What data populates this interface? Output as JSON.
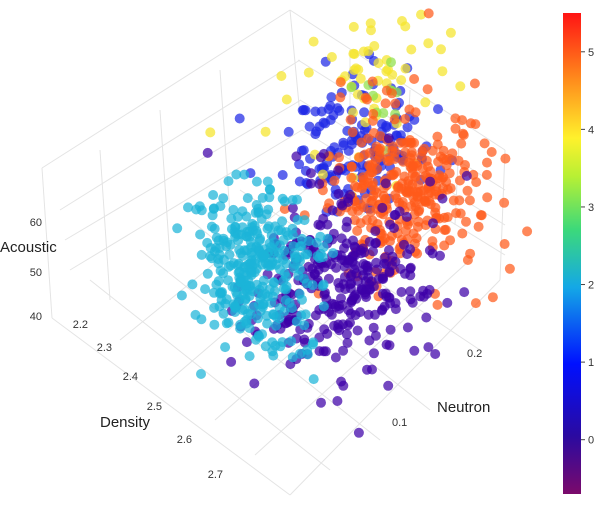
{
  "chart_data": {
    "type": "scatter3d",
    "axes": {
      "x": {
        "label": "Density",
        "ticks": [
          "2.2",
          "2.3",
          "2.4",
          "2.5",
          "2.6",
          "2.7"
        ],
        "range": [
          2.15,
          2.75
        ]
      },
      "y": {
        "label": "Neutron",
        "ticks": [
          "0.1",
          "0.2"
        ],
        "range": [
          0.0,
          0.28
        ]
      },
      "z": {
        "label": "Acoustic",
        "ticks": [
          "40",
          "50",
          "60"
        ],
        "range": [
          38,
          70
        ]
      }
    },
    "grid": true,
    "colorbar": {
      "ticks": [
        "0",
        "1",
        "2",
        "3",
        "4",
        "5"
      ],
      "range": [
        -0.7,
        5.5
      ],
      "colorscale": "jet-like",
      "placement": "right"
    },
    "clusters": [
      {
        "color_value": 0,
        "density_mean": 2.55,
        "neutron_mean": 0.13,
        "acoustic_mean": 49,
        "count": 320,
        "color": "#3d00a8"
      },
      {
        "color_value": 1,
        "density_mean": 2.37,
        "neutron_mean": 0.2,
        "acoustic_mean": 60,
        "count": 150,
        "color": "#1e28e6"
      },
      {
        "color_value": 2,
        "density_mean": 2.45,
        "neutron_mean": 0.06,
        "acoustic_mean": 50,
        "count": 330,
        "color": "#1cb4d8"
      },
      {
        "color_value": 4,
        "density_mean": 2.3,
        "neutron_mean": 0.25,
        "acoustic_mean": 65,
        "count": 60,
        "color": "#f5e52b"
      },
      {
        "color_value": 3.5,
        "density_mean": 2.32,
        "neutron_mean": 0.24,
        "acoustic_mean": 64,
        "count": 10,
        "color": "#8fe04a"
      },
      {
        "color_value": 4.6,
        "density_mean": 2.45,
        "neutron_mean": 0.24,
        "acoustic_mean": 55,
        "count": 330,
        "color": "#ff5a1a"
      }
    ]
  }
}
